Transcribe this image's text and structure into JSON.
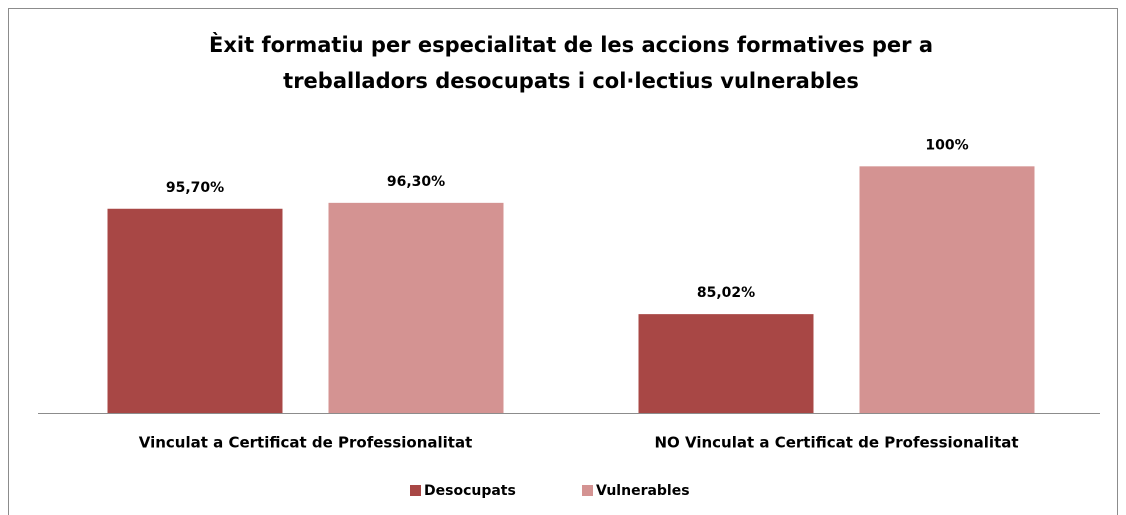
{
  "chart_data": {
    "type": "bar",
    "title": [
      "Èxit formatiu per especialitat de les accions formatives per a",
      "treballadors desocupats i col·lectius vulnerables"
    ],
    "categories": [
      "Vinculat a Certificat de Professionalitat",
      "NO Vinculat a Certificat de Professionalitat"
    ],
    "series": [
      {
        "name": "Desocupats",
        "color": "#a84745",
        "values": [
          95.7,
          85.02
        ],
        "value_labels": [
          "95,70%",
          "85,02%"
        ]
      },
      {
        "name": "Vulnerables",
        "color": "#d49392",
        "values": [
          96.3,
          100
        ],
        "value_labels": [
          "96,30%",
          "100%"
        ]
      }
    ],
    "ylim": [
      75,
      105
    ],
    "legend": "bottom"
  }
}
